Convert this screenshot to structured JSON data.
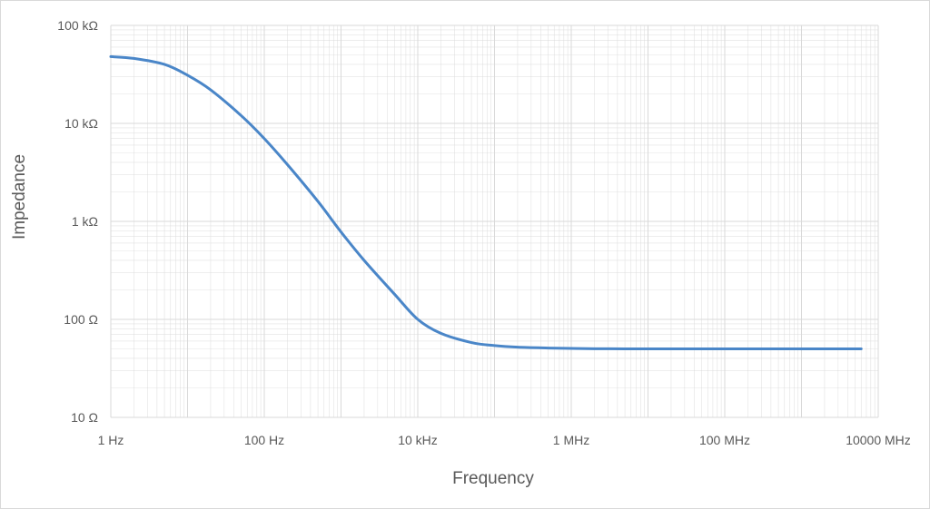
{
  "chart_data": {
    "type": "line",
    "xlabel": "Frequency",
    "ylabel": "Impedance",
    "x_scale": "log",
    "y_scale": "log",
    "xlim": [
      1,
      10000000000
    ],
    "ylim": [
      10,
      100000
    ],
    "x_ticks": [
      {
        "value": 1,
        "label": "1 Hz"
      },
      {
        "value": 100,
        "label": "100 Hz"
      },
      {
        "value": 10000,
        "label": "10 kHz"
      },
      {
        "value": 1000000,
        "label": "1 MHz"
      },
      {
        "value": 100000000,
        "label": "100 MHz"
      },
      {
        "value": 10000000000,
        "label": "10000 MHz"
      }
    ],
    "y_ticks": [
      {
        "value": 10,
        "label": "10 Ω"
      },
      {
        "value": 100,
        "label": "100 Ω"
      },
      {
        "value": 1000,
        "label": "1 kΩ"
      },
      {
        "value": 10000,
        "label": "10 kΩ"
      },
      {
        "value": 100000,
        "label": "100 kΩ"
      }
    ],
    "grid": true,
    "minor_grid": true,
    "line_color": "#4a86c8",
    "gridline_color": "#d9d9d9",
    "series": [
      {
        "x": [
          1,
          2,
          5,
          10,
          20,
          50,
          100,
          200,
          500,
          1000,
          2000,
          5000,
          10000,
          20000,
          50000,
          100000,
          200000,
          500000,
          1000000,
          2000000,
          5000000,
          10000000,
          100000000,
          1000000000,
          6000000000
        ],
        "y": [
          48000,
          46000,
          40000,
          31000,
          22000,
          12000,
          7000,
          3800,
          1600,
          780,
          400,
          180,
          100,
          72,
          58,
          54,
          52,
          51,
          50.5,
          50.2,
          50,
          50,
          50,
          50,
          50
        ]
      }
    ]
  }
}
